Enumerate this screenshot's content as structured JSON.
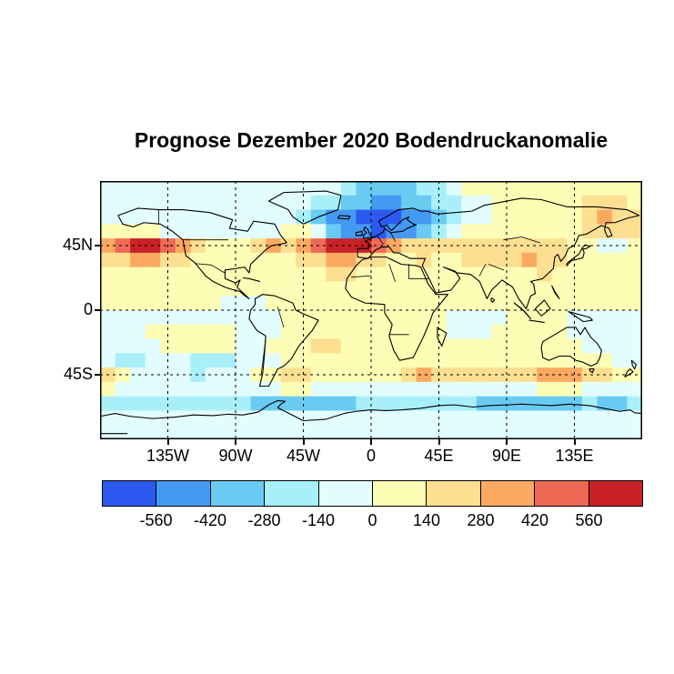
{
  "chart_data": {
    "type": "heatmap",
    "title": "Prognose Dezember 2020 Bodendruckanomalie",
    "projection": "equirectangular",
    "lon_range": [
      -180,
      180
    ],
    "lat_range": [
      -90,
      90
    ],
    "grid_on": true,
    "x_ticks": [
      {
        "value": -135,
        "label": "135W"
      },
      {
        "value": -90,
        "label": "90W"
      },
      {
        "value": -45,
        "label": "45W"
      },
      {
        "value": 0,
        "label": "0"
      },
      {
        "value": 45,
        "label": "45E"
      },
      {
        "value": 90,
        "label": "90E"
      },
      {
        "value": 135,
        "label": "135E"
      }
    ],
    "y_ticks": [
      {
        "value": 45,
        "label": "45N"
      },
      {
        "value": 0,
        "label": "0"
      },
      {
        "value": -45,
        "label": "45S"
      }
    ],
    "grid_lons": [
      -135,
      -90,
      -45,
      0,
      45,
      90,
      135
    ],
    "grid_lats": [
      45,
      0,
      -45
    ],
    "colorbar": {
      "position": "bottom",
      "tick_labels": [
        "-560",
        "-420",
        "-280",
        "-140",
        "0",
        "140",
        "280",
        "420",
        "560"
      ],
      "bin_edges": [
        -700,
        -560,
        -420,
        -280,
        -140,
        0,
        140,
        280,
        420,
        560,
        700
      ],
      "colors": [
        "#2C59F0",
        "#4499F2",
        "#69CBF2",
        "#A9EFFA",
        "#E2FDFF",
        "#FEFDB5",
        "#FDDF92",
        "#FBA961",
        "#EE6A55",
        "#C82127"
      ]
    },
    "cell_size_deg": 10,
    "bin_grid_note": "rows from 90N to 90S, 36 cells per row from 180W to 180E; each digit is an index into colorbar.colors",
    "bin_grid": [
      "444444444444444432222334555555555555",
      "444444444444443322112233445555556665",
      "444444444444432110001123445555556766",
      "555544444444554211011234555555556666",
      "789987655567678999876666666666655445",
      "667766555555566776655655666676655555",
      "555555555555555665555555555556555555",
      "555555555555555555555555555555555555",
      "555555554445555555555555555555555555",
      "444444444444555555555554444555544444",
      "444555555444555555555554445555544444",
      "444455555445556655555555555555554444",
      "433444333444555555555555555555555544",
      "654444344455665555556766666667776655",
      "544444444444554444444444444445554444",
      "333333333322222223333333322222223223",
      "444444444444444444444444444444444444",
      "444444444444444444444444444444444444"
    ]
  }
}
